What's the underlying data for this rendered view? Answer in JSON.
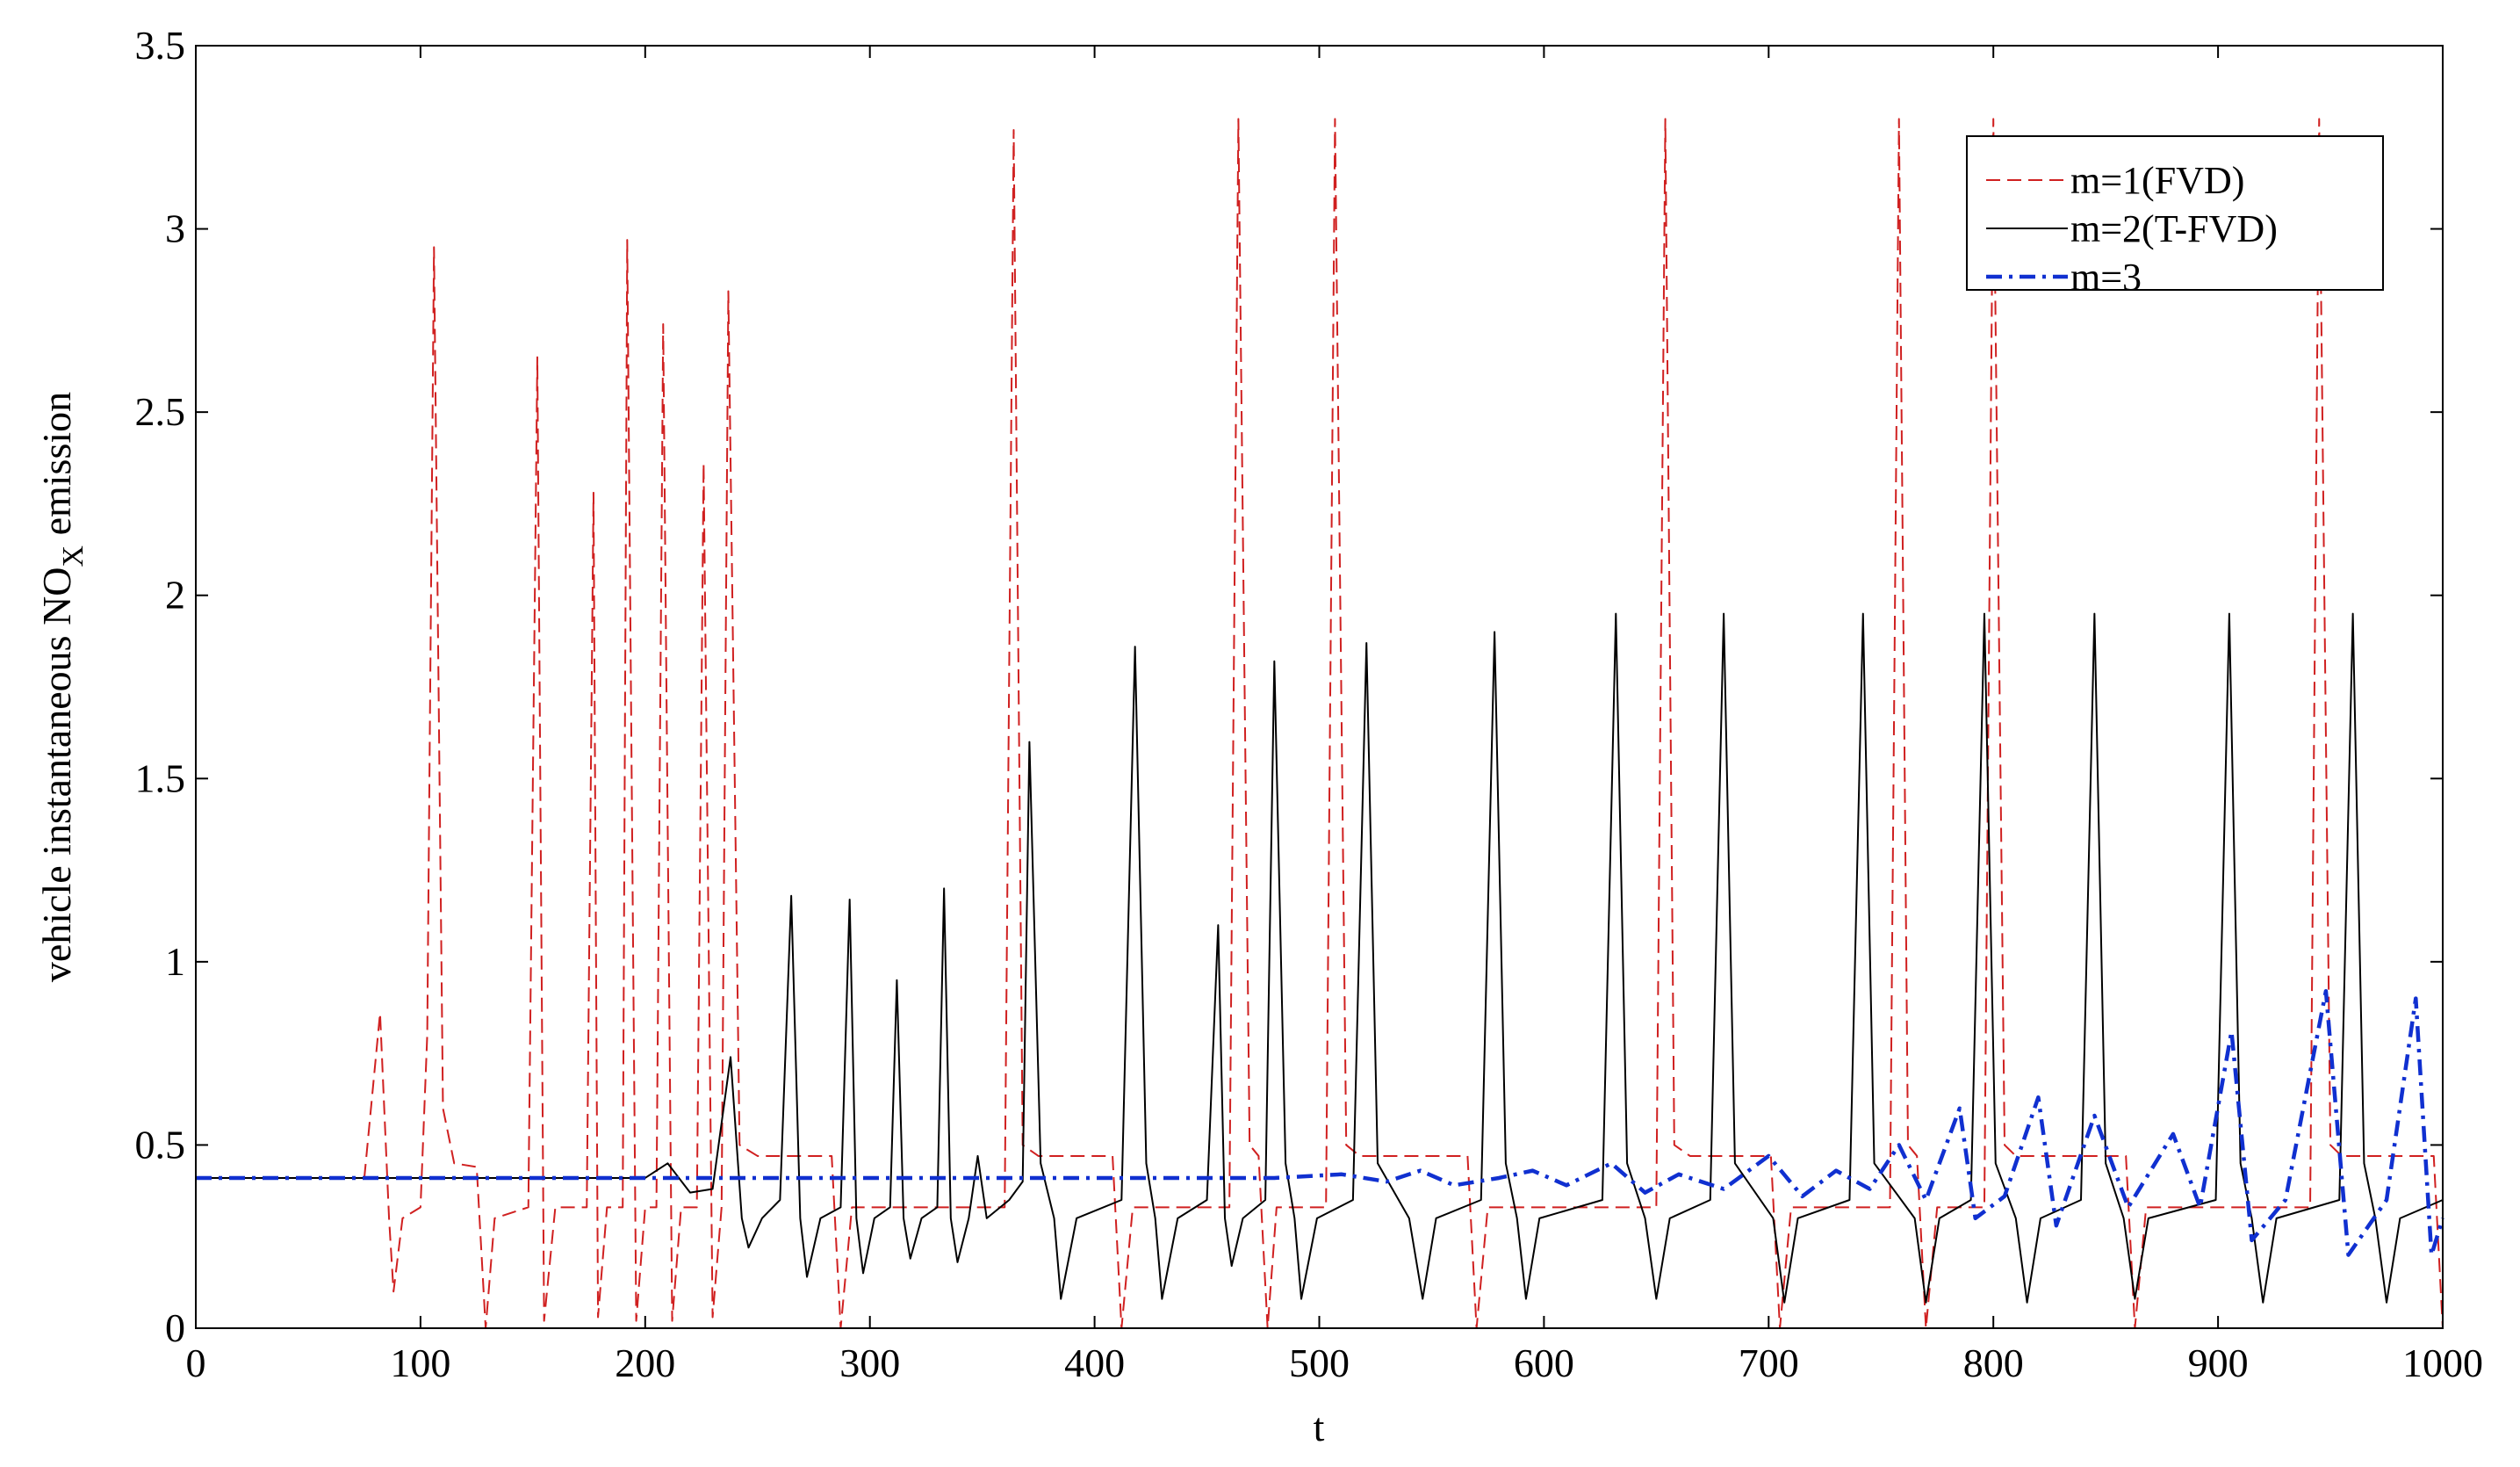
{
  "chart_data": {
    "type": "line",
    "title": "",
    "xlabel": "t",
    "ylabel": "vehicle instantaneous NO",
    "ylabel_sub": "X",
    "ylabel_tail": " emission",
    "xlim": [
      0,
      1000
    ],
    "ylim": [
      0,
      3.5
    ],
    "xticks": [
      0,
      100,
      200,
      300,
      400,
      500,
      600,
      700,
      800,
      900,
      1000
    ],
    "xtick_labels": [
      "0",
      "100",
      "200",
      "300",
      "400",
      "500",
      "600",
      "700",
      "800",
      "900",
      "1000"
    ],
    "yticks": [
      0,
      0.5,
      1,
      1.5,
      2,
      2.5,
      3,
      3.5
    ],
    "ytick_labels": [
      "0",
      "0.5",
      "1",
      "1.5",
      "2",
      "2.5",
      "3",
      "3.5"
    ],
    "grid": false,
    "legend_position": "top-right",
    "series": [
      {
        "name": "m=1(FVD)",
        "color": "#d02020",
        "style": "dashed",
        "points": [
          [
            0,
            0.41
          ],
          [
            75,
            0.41
          ],
          [
            82,
            0.86
          ],
          [
            86,
            0.3
          ],
          [
            88,
            0.1
          ],
          [
            92,
            0.3
          ],
          [
            100,
            0.33
          ],
          [
            103,
            0.8
          ],
          [
            106,
            2.95
          ],
          [
            110,
            0.6
          ],
          [
            115,
            0.45
          ],
          [
            125,
            0.44
          ],
          [
            129,
            0
          ],
          [
            133,
            0.3
          ],
          [
            148,
            0.33
          ],
          [
            152,
            2.65
          ],
          [
            155,
            0.02
          ],
          [
            160,
            0.33
          ],
          [
            174,
            0.33
          ],
          [
            177,
            2.28
          ],
          [
            179,
            0.03
          ],
          [
            183,
            0.33
          ],
          [
            190,
            0.33
          ],
          [
            192,
            2.97
          ],
          [
            196,
            0.02
          ],
          [
            200,
            0.33
          ],
          [
            205,
            0.33
          ],
          [
            208,
            2.74
          ],
          [
            212,
            0.02
          ],
          [
            216,
            0.33
          ],
          [
            223,
            0.33
          ],
          [
            226,
            2.36
          ],
          [
            230,
            0.03
          ],
          [
            234,
            0.33
          ],
          [
            237,
            2.83
          ],
          [
            242,
            0.5
          ],
          [
            250,
            0.47
          ],
          [
            283,
            0.47
          ],
          [
            287,
            0
          ],
          [
            292,
            0.33
          ],
          [
            360,
            0.33
          ],
          [
            364,
            3.27
          ],
          [
            368,
            0.5
          ],
          [
            375,
            0.47
          ],
          [
            408,
            0.47
          ],
          [
            412,
            0
          ],
          [
            417,
            0.33
          ],
          [
            460,
            0.33
          ],
          [
            464,
            3.3
          ],
          [
            469,
            0.5
          ],
          [
            473,
            0.47
          ],
          [
            477,
            0
          ],
          [
            481,
            0.33
          ],
          [
            503,
            0.33
          ],
          [
            507,
            3.3
          ],
          [
            512,
            0.5
          ],
          [
            518,
            0.47
          ],
          [
            566,
            0.47
          ],
          [
            570,
            0
          ],
          [
            575,
            0.33
          ],
          [
            650,
            0.33
          ],
          [
            654,
            3.3
          ],
          [
            658,
            0.5
          ],
          [
            665,
            0.47
          ],
          [
            701,
            0.47
          ],
          [
            705,
            0
          ],
          [
            710,
            0.33
          ],
          [
            754,
            0.33
          ],
          [
            758,
            3.3
          ],
          [
            762,
            0.5
          ],
          [
            766,
            0.47
          ],
          [
            770,
            0
          ],
          [
            775,
            0.33
          ],
          [
            796,
            0.33
          ],
          [
            800,
            3.3
          ],
          [
            805,
            0.5
          ],
          [
            810,
            0.47
          ],
          [
            859,
            0.47
          ],
          [
            863,
            0
          ],
          [
            868,
            0.33
          ],
          [
            941,
            0.33
          ],
          [
            945,
            3.3
          ],
          [
            950,
            0.5
          ],
          [
            955,
            0.47
          ],
          [
            996,
            0.47
          ],
          [
            1000,
            0
          ]
        ]
      },
      {
        "name": "m=2(T-FVD)",
        "color": "#000000",
        "style": "solid",
        "points": [
          [
            0,
            0.41
          ],
          [
            200,
            0.41
          ],
          [
            210,
            0.45
          ],
          [
            220,
            0.37
          ],
          [
            230,
            0.38
          ],
          [
            238,
            0.74
          ],
          [
            243,
            0.3
          ],
          [
            246,
            0.22
          ],
          [
            252,
            0.3
          ],
          [
            260,
            0.35
          ],
          [
            265,
            1.18
          ],
          [
            269,
            0.3
          ],
          [
            272,
            0.14
          ],
          [
            278,
            0.3
          ],
          [
            287,
            0.33
          ],
          [
            291,
            1.17
          ],
          [
            294,
            0.3
          ],
          [
            297,
            0.15
          ],
          [
            302,
            0.3
          ],
          [
            309,
            0.33
          ],
          [
            312,
            0.95
          ],
          [
            315,
            0.3
          ],
          [
            318,
            0.19
          ],
          [
            323,
            0.3
          ],
          [
            330,
            0.33
          ],
          [
            333,
            1.2
          ],
          [
            336,
            0.3
          ],
          [
            339,
            0.18
          ],
          [
            344,
            0.3
          ],
          [
            348,
            0.47
          ],
          [
            352,
            0.3
          ],
          [
            362,
            0.35
          ],
          [
            368,
            0.4
          ],
          [
            371,
            1.6
          ],
          [
            376,
            0.45
          ],
          [
            382,
            0.3
          ],
          [
            385,
            0.08
          ],
          [
            392,
            0.3
          ],
          [
            412,
            0.35
          ],
          [
            418,
            1.86
          ],
          [
            423,
            0.45
          ],
          [
            427,
            0.3
          ],
          [
            430,
            0.08
          ],
          [
            437,
            0.3
          ],
          [
            450,
            0.35
          ],
          [
            455,
            1.1
          ],
          [
            458,
            0.3
          ],
          [
            461,
            0.17
          ],
          [
            466,
            0.3
          ],
          [
            476,
            0.35
          ],
          [
            480,
            1.82
          ],
          [
            485,
            0.45
          ],
          [
            489,
            0.3
          ],
          [
            492,
            0.08
          ],
          [
            499,
            0.3
          ],
          [
            515,
            0.35
          ],
          [
            521,
            1.87
          ],
          [
            526,
            0.45
          ],
          [
            540,
            0.3
          ],
          [
            546,
            0.08
          ],
          [
            552,
            0.3
          ],
          [
            572,
            0.35
          ],
          [
            578,
            1.9
          ],
          [
            583,
            0.45
          ],
          [
            588,
            0.3
          ],
          [
            592,
            0.08
          ],
          [
            598,
            0.3
          ],
          [
            626,
            0.35
          ],
          [
            632,
            1.95
          ],
          [
            637,
            0.45
          ],
          [
            645,
            0.3
          ],
          [
            650,
            0.08
          ],
          [
            656,
            0.3
          ],
          [
            674,
            0.35
          ],
          [
            680,
            1.95
          ],
          [
            685,
            0.45
          ],
          [
            702,
            0.3
          ],
          [
            707,
            0.07
          ],
          [
            713,
            0.3
          ],
          [
            736,
            0.35
          ],
          [
            742,
            1.95
          ],
          [
            747,
            0.45
          ],
          [
            765,
            0.3
          ],
          [
            770,
            0.07
          ],
          [
            776,
            0.3
          ],
          [
            790,
            0.35
          ],
          [
            796,
            1.95
          ],
          [
            801,
            0.45
          ],
          [
            810,
            0.3
          ],
          [
            815,
            0.07
          ],
          [
            821,
            0.3
          ],
          [
            839,
            0.35
          ],
          [
            845,
            1.95
          ],
          [
            850,
            0.45
          ],
          [
            858,
            0.3
          ],
          [
            863,
            0.08
          ],
          [
            869,
            0.3
          ],
          [
            899,
            0.35
          ],
          [
            905,
            1.95
          ],
          [
            910,
            0.45
          ],
          [
            915,
            0.3
          ],
          [
            920,
            0.07
          ],
          [
            926,
            0.3
          ],
          [
            954,
            0.35
          ],
          [
            960,
            1.95
          ],
          [
            965,
            0.45
          ],
          [
            970,
            0.3
          ],
          [
            975,
            0.07
          ],
          [
            981,
            0.3
          ],
          [
            1000,
            0.35
          ]
        ]
      },
      {
        "name": "m=3",
        "color": "#1030d0",
        "style": "dashdot",
        "points": [
          [
            0,
            0.41
          ],
          [
            400,
            0.41
          ],
          [
            480,
            0.41
          ],
          [
            510,
            0.42
          ],
          [
            530,
            0.4
          ],
          [
            545,
            0.43
          ],
          [
            560,
            0.39
          ],
          [
            580,
            0.41
          ],
          [
            595,
            0.43
          ],
          [
            610,
            0.39
          ],
          [
            630,
            0.45
          ],
          [
            645,
            0.37
          ],
          [
            660,
            0.42
          ],
          [
            680,
            0.38
          ],
          [
            700,
            0.47
          ],
          [
            715,
            0.36
          ],
          [
            730,
            0.43
          ],
          [
            745,
            0.38
          ],
          [
            758,
            0.5
          ],
          [
            770,
            0.35
          ],
          [
            785,
            0.6
          ],
          [
            792,
            0.3
          ],
          [
            805,
            0.36
          ],
          [
            820,
            0.63
          ],
          [
            828,
            0.28
          ],
          [
            845,
            0.58
          ],
          [
            860,
            0.33
          ],
          [
            880,
            0.53
          ],
          [
            892,
            0.33
          ],
          [
            906,
            0.81
          ],
          [
            915,
            0.24
          ],
          [
            930,
            0.35
          ],
          [
            948,
            0.92
          ],
          [
            958,
            0.2
          ],
          [
            975,
            0.35
          ],
          [
            988,
            0.9
          ],
          [
            995,
            0.2
          ],
          [
            1000,
            0.3
          ]
        ]
      }
    ]
  }
}
